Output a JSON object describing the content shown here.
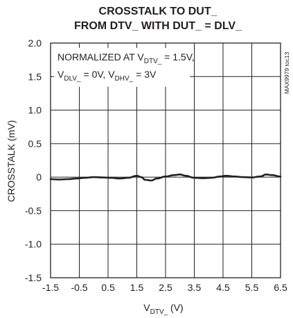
{
  "chart_data": {
    "type": "line",
    "title_line1": "CROSSTALK TO DUT_",
    "title_line2": "FROM DTV_ WITH DUT_ = DLV_",
    "xlabel": {
      "main": "V",
      "sub": "DTV_",
      "suffix": " (V)"
    },
    "ylabel": "CROSSTALK (mV)",
    "xlim": [
      -1.5,
      6.5
    ],
    "ylim": [
      -1.5,
      2.0
    ],
    "xticks": [
      -1.5,
      -0.5,
      0.5,
      1.5,
      2.5,
      3.5,
      4.5,
      5.5,
      6.5
    ],
    "xtick_labels": [
      "-1.5",
      "-0.5",
      "0.5",
      "1.5",
      "2.5",
      "3.5",
      "4.5",
      "5.5",
      "6.5"
    ],
    "yticks": [
      2.0,
      1.5,
      1.0,
      0.5,
      0,
      -0.5,
      -1.0,
      -1.5
    ],
    "ytick_labels": [
      "2.0",
      "1.5",
      "1.0",
      "0.5",
      "0",
      "-0.5",
      "-1.0",
      "-1.5"
    ],
    "grid": true,
    "annotation": {
      "line1": {
        "pre": "NORMALIZED AT V",
        "sub": "DTV_",
        "post": " = 1.5V,"
      },
      "line2": {
        "p1": "V",
        "s1": "DLV_",
        "p2": " = 0V, V",
        "s2": "DHV_",
        "p3": " = 3V"
      }
    },
    "side_label": "MAX9979 toc13",
    "series": [
      {
        "color": "#231f20",
        "x": [
          -1.5,
          -1.2,
          -0.9,
          -0.6,
          -0.3,
          0.0,
          0.3,
          0.6,
          0.9,
          1.2,
          1.5,
          1.65,
          1.8,
          2.0,
          2.2,
          2.5,
          2.8,
          3.0,
          3.2,
          3.5,
          3.8,
          4.1,
          4.4,
          4.6,
          4.9,
          5.2,
          5.5,
          5.8,
          6.0,
          6.2,
          6.5
        ],
        "y": [
          -0.03,
          -0.035,
          -0.03,
          -0.02,
          -0.01,
          0.0,
          -0.005,
          -0.01,
          -0.02,
          -0.01,
          0.02,
          0.0,
          -0.04,
          -0.05,
          -0.02,
          0.01,
          0.03,
          0.04,
          0.02,
          -0.01,
          -0.015,
          -0.01,
          0.01,
          0.02,
          0.01,
          0.0,
          -0.005,
          0.01,
          0.04,
          0.03,
          0.01
        ]
      }
    ]
  }
}
